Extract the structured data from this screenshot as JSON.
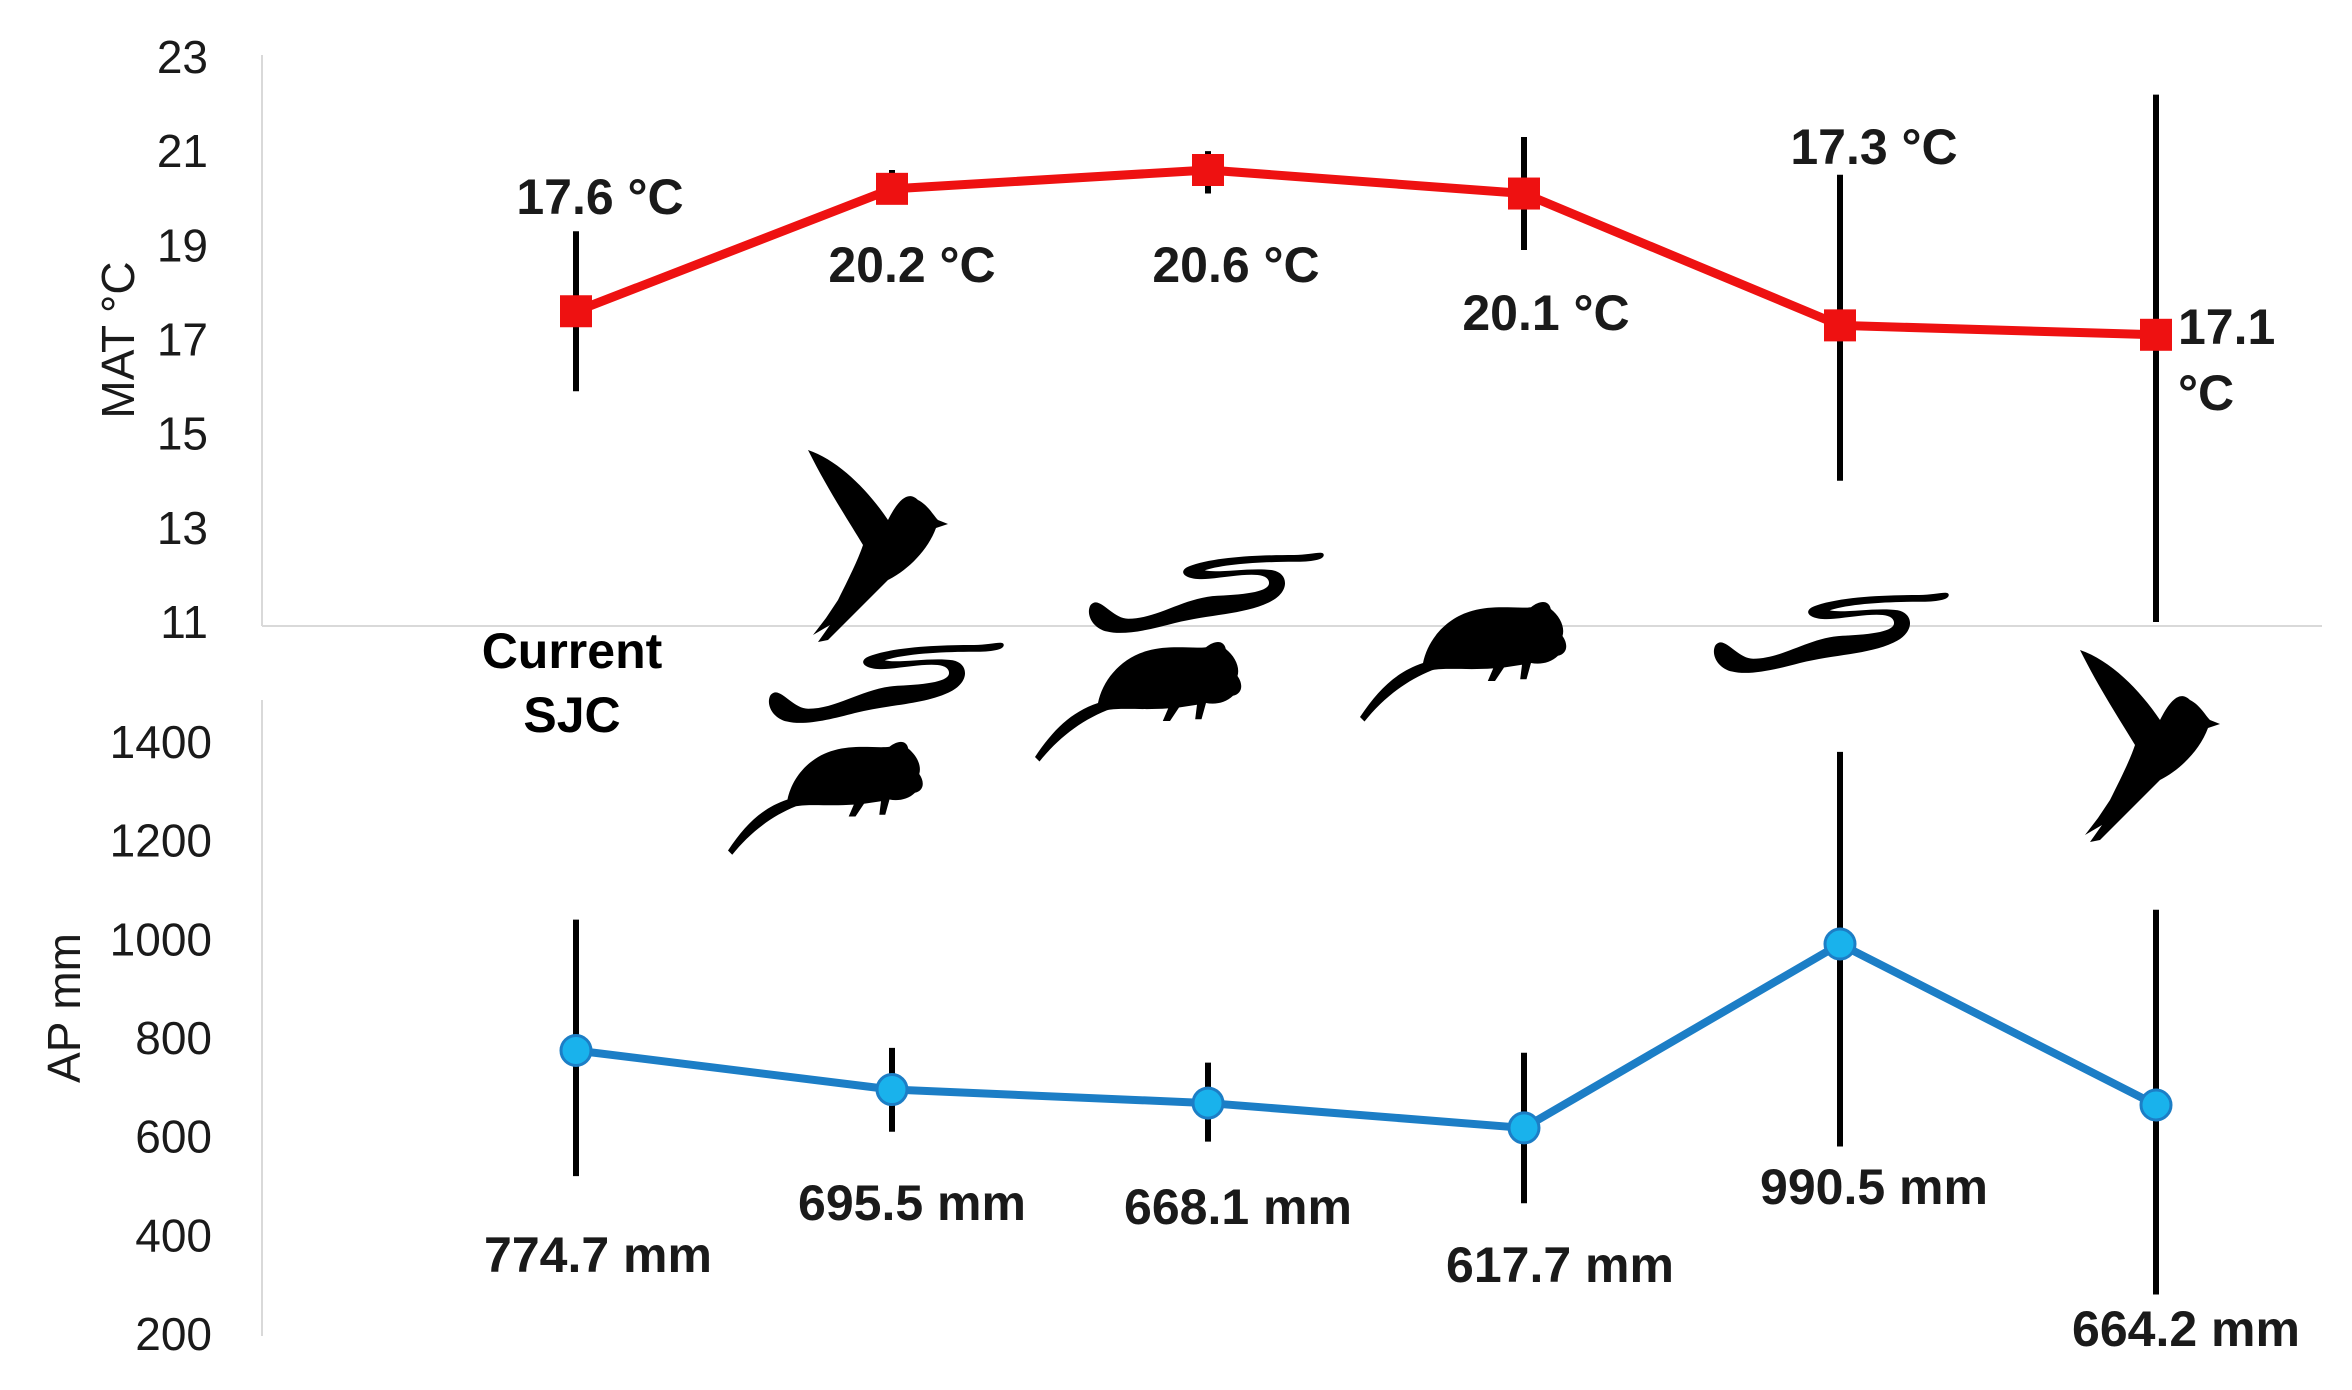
{
  "chart_data": [
    {
      "type": "line",
      "ylabel": "MAT °C",
      "ylim": [
        11,
        23
      ],
      "yticks": [
        "23",
        "21",
        "19",
        "17",
        "15",
        "13",
        "11"
      ],
      "series": [
        {
          "values": [
            17.6,
            20.2,
            20.6,
            20.1,
            17.3,
            17.1
          ],
          "err_low": [
            15.9,
            19.9,
            20.1,
            18.9,
            14.0,
            11.0
          ],
          "err_high": [
            19.3,
            20.6,
            21.0,
            21.3,
            20.5,
            22.2
          ],
          "color": "#ee1111"
        }
      ],
      "data_labels": [
        "17.6 °C",
        "20.2 °C",
        "20.6 °C",
        "20.1 °C",
        "17.3 °C",
        "17.1 °C"
      ],
      "grid": false
    },
    {
      "type": "line",
      "ylabel": "AP mm",
      "ylim": [
        200,
        1500
      ],
      "yticks": [
        "1400",
        "1200",
        "1000",
        "800",
        "600",
        "400",
        "200"
      ],
      "series": [
        {
          "values": [
            774.7,
            695.5,
            668.1,
            617.7,
            990.5,
            664.2
          ],
          "err_low": [
            520,
            610,
            590,
            465,
            580,
            280
          ],
          "err_high": [
            1040,
            780,
            750,
            770,
            1380,
            1060
          ],
          "color": "#1c7ec6"
        }
      ],
      "data_labels": [
        "774.7 mm",
        "695.5 mm",
        "668.1 mm",
        "617.7 mm",
        "990.5 mm",
        "664.2 mm"
      ],
      "grid": false
    }
  ],
  "annotations": {
    "current_line1": "Current",
    "current_line2": "SJC"
  },
  "icons": [
    "bird-silhouette-icon",
    "snake-silhouette-icon",
    "rodent-silhouette-icon"
  ]
}
